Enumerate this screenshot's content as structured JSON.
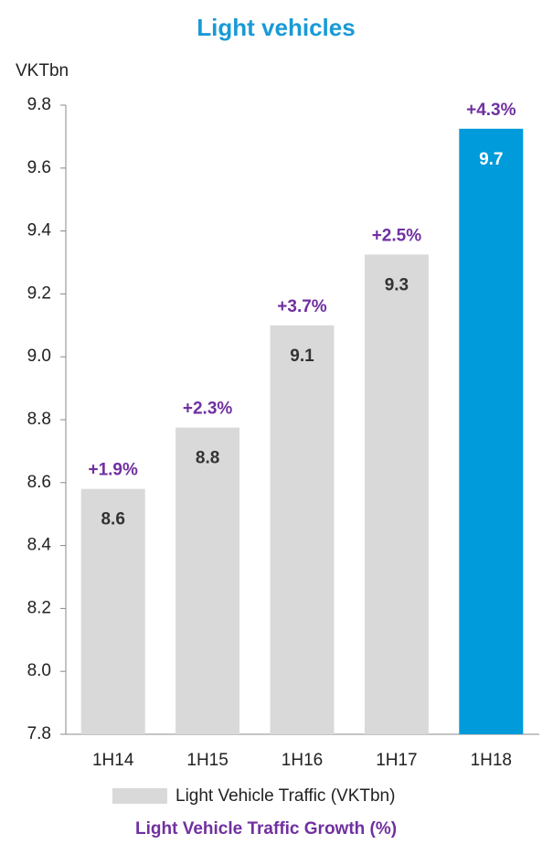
{
  "chart_data": {
    "type": "bar",
    "title": "Light vehicles",
    "y_axis_label": "VKTbn",
    "categories": [
      "1H14",
      "1H15",
      "1H16",
      "1H17",
      "1H18"
    ],
    "series": [
      {
        "name": "Light Vehicle Traffic (VKTbn)",
        "color": "#d9d9d9",
        "colors": [
          "#d9d9d9",
          "#d9d9d9",
          "#d9d9d9",
          "#d9d9d9",
          "#009bdb"
        ],
        "values": [
          8.58,
          8.775,
          9.1,
          9.325,
          9.725
        ],
        "value_labels": [
          "8.6",
          "8.8",
          "9.1",
          "9.3",
          "9.7"
        ]
      },
      {
        "name": "Light Vehicle Traffic Growth (%)",
        "color": "#7030a0",
        "values": [
          1.9,
          2.3,
          3.7,
          2.5,
          4.3
        ],
        "value_labels": [
          "+1.9%",
          "+2.3%",
          "+3.7%",
          "+2.5%",
          "+4.3%"
        ]
      }
    ],
    "ylim": [
      7.8,
      9.8
    ],
    "yticks": [
      7.8,
      {
        "value": 8,
        "label": "8.0"
      },
      8.2,
      8.4,
      8.6,
      8.8,
      {
        "value": 9,
        "label": "9.0"
      },
      9.2,
      9.4,
      9.6,
      9.8
    ],
    "grid": false
  }
}
